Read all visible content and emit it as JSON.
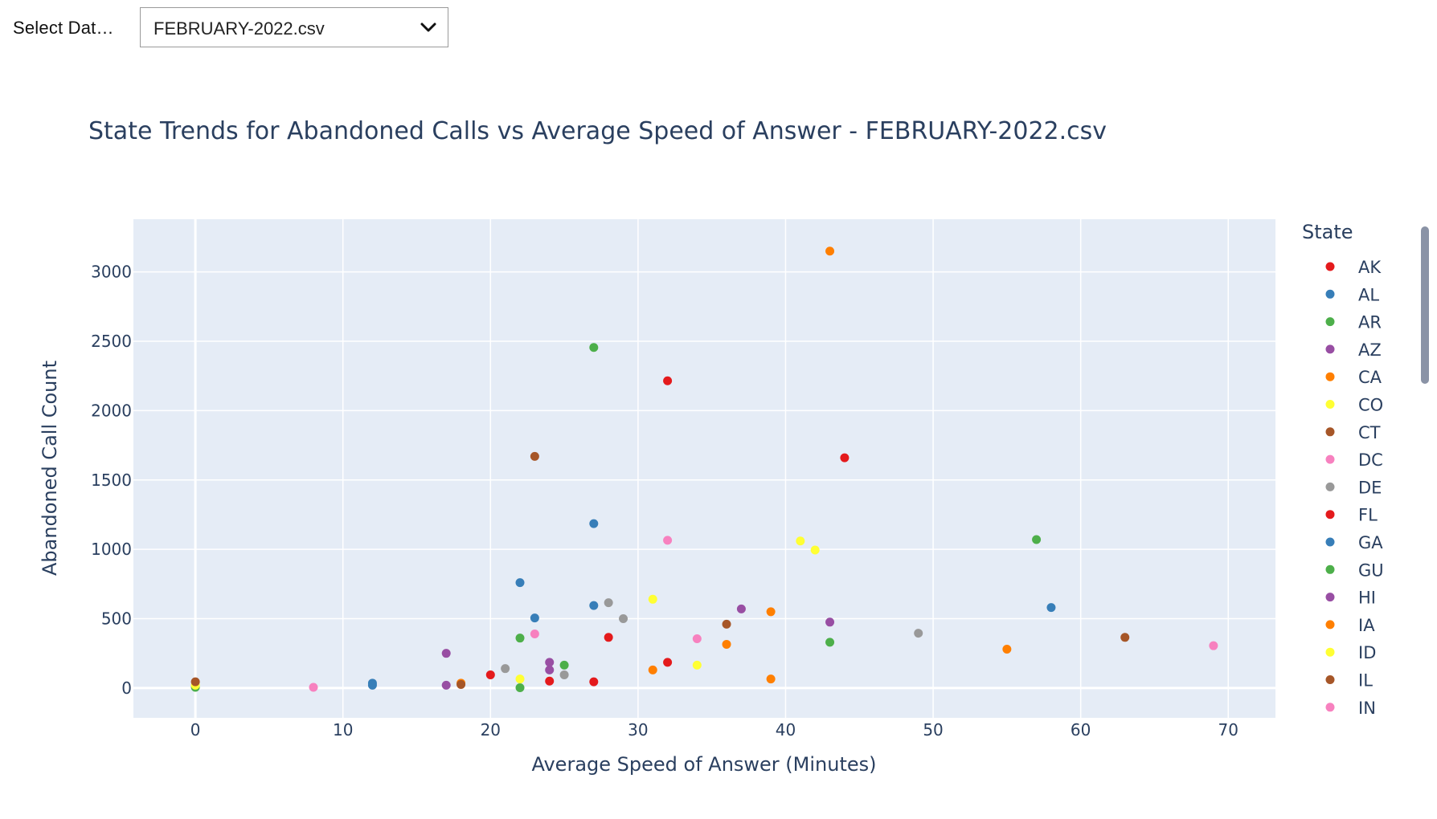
{
  "controls": {
    "select_label": "Select Dat…",
    "dataset_value": "FEBRUARY-2022.csv"
  },
  "chart_data": {
    "type": "scatter",
    "title": "State Trends for Abandoned Calls vs Average Speed of Answer - FEBRUARY-2022.csv",
    "xlabel": "Average Speed of Answer (Minutes)",
    "ylabel": "Abandoned Call Count",
    "xlim": [
      -4.2,
      73.2
    ],
    "ylim": [
      -215,
      3380
    ],
    "x_ticks": [
      0,
      10,
      20,
      30,
      40,
      50,
      60,
      70
    ],
    "y_ticks": [
      0,
      500,
      1000,
      1500,
      2000,
      2500,
      3000
    ],
    "grid": true,
    "legend_title": "State",
    "legend_position": "right",
    "series": [
      {
        "name": "AK",
        "color": "#e41a1c",
        "points": [
          [
            20,
            95
          ]
        ]
      },
      {
        "name": "AL",
        "color": "#377eb8",
        "points": [
          [
            12,
            35
          ]
        ]
      },
      {
        "name": "AR",
        "color": "#4daf4a",
        "points": [
          [
            22,
            360
          ]
        ]
      },
      {
        "name": "AZ",
        "color": "#984ea3",
        "points": [
          [
            24,
            185
          ]
        ]
      },
      {
        "name": "CA",
        "color": "#ff7f00",
        "points": [
          [
            43,
            3150
          ]
        ]
      },
      {
        "name": "CO",
        "color": "#ffff33",
        "points": [
          [
            41,
            1060
          ]
        ]
      },
      {
        "name": "CT",
        "color": "#a65628",
        "points": [
          [
            23,
            1670
          ]
        ]
      },
      {
        "name": "DC",
        "color": "#f781bf",
        "points": [
          [
            32,
            1065
          ]
        ]
      },
      {
        "name": "DE",
        "color": "#999999",
        "points": [
          [
            29,
            500
          ]
        ]
      },
      {
        "name": "FL",
        "color": "#e41a1c",
        "points": [
          [
            32,
            2215
          ]
        ]
      },
      {
        "name": "GA",
        "color": "#377eb8",
        "points": [
          [
            27,
            1185
          ]
        ]
      },
      {
        "name": "GU",
        "color": "#4daf4a",
        "points": [
          [
            27,
            2455
          ]
        ]
      },
      {
        "name": "HI",
        "color": "#984ea3",
        "points": [
          [
            17,
            20
          ]
        ]
      },
      {
        "name": "IA",
        "color": "#ff7f00",
        "points": [
          [
            39,
            550
          ]
        ]
      },
      {
        "name": "ID",
        "color": "#ffff33",
        "points": [
          [
            31,
            640
          ]
        ]
      },
      {
        "name": "IL",
        "color": "#a65628",
        "points": [
          [
            36,
            460
          ]
        ]
      },
      {
        "name": "IN",
        "color": "#f781bf",
        "points": [
          [
            8,
            5
          ]
        ]
      },
      {
        "name": "",
        "color": "#e41a1c",
        "points": [
          [
            44,
            1660
          ],
          [
            28,
            365
          ],
          [
            32,
            185
          ],
          [
            24,
            50
          ],
          [
            27,
            45
          ]
        ]
      },
      {
        "name": "",
        "color": "#377eb8",
        "points": [
          [
            22,
            760
          ],
          [
            23,
            505
          ],
          [
            27,
            595
          ],
          [
            58,
            580
          ],
          [
            12,
            20
          ]
        ]
      },
      {
        "name": "",
        "color": "#4daf4a",
        "points": [
          [
            57,
            1070
          ],
          [
            43,
            330
          ],
          [
            25,
            165
          ],
          [
            22,
            2
          ],
          [
            0,
            5
          ]
        ]
      },
      {
        "name": "",
        "color": "#984ea3",
        "points": [
          [
            37,
            570
          ],
          [
            43,
            475
          ],
          [
            17,
            250
          ],
          [
            24,
            130
          ]
        ]
      },
      {
        "name": "",
        "color": "#ff7f00",
        "points": [
          [
            36,
            315
          ],
          [
            31,
            130
          ],
          [
            39,
            65
          ],
          [
            55,
            280
          ],
          [
            18,
            35
          ]
        ]
      },
      {
        "name": "",
        "color": "#ffff33",
        "points": [
          [
            42,
            995
          ],
          [
            34,
            165
          ],
          [
            22,
            65
          ],
          [
            0,
            20
          ]
        ]
      },
      {
        "name": "",
        "color": "#a65628",
        "points": [
          [
            63,
            365
          ],
          [
            18,
            25
          ],
          [
            0,
            45
          ]
        ]
      },
      {
        "name": "",
        "color": "#f781bf",
        "points": [
          [
            23,
            390
          ],
          [
            34,
            355
          ],
          [
            69,
            305
          ]
        ]
      },
      {
        "name": "",
        "color": "#999999",
        "points": [
          [
            49,
            395
          ],
          [
            28,
            615
          ],
          [
            21,
            140
          ],
          [
            25,
            95
          ]
        ]
      }
    ]
  }
}
